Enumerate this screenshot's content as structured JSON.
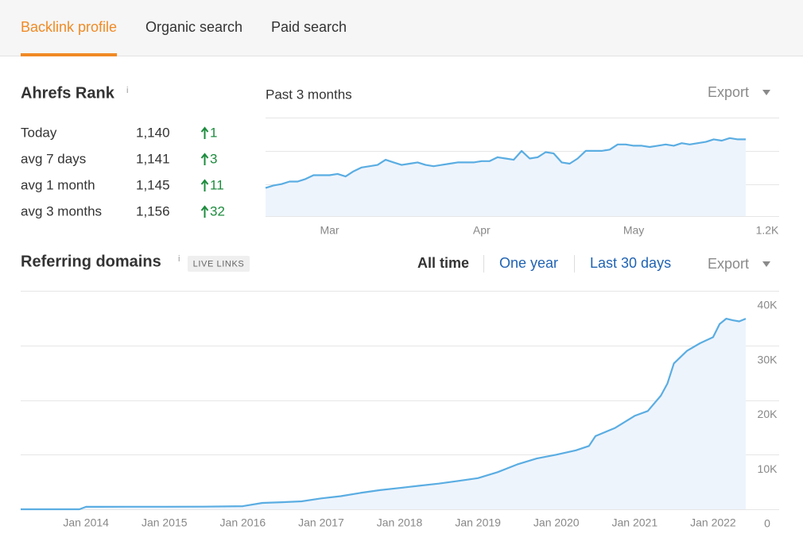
{
  "tabs": [
    {
      "label": "Backlink profile",
      "active": true
    },
    {
      "label": "Organic search",
      "active": false
    },
    {
      "label": "Paid search",
      "active": false
    }
  ],
  "ahrefs_rank": {
    "title": "Ahrefs Rank",
    "info": "i",
    "rows": [
      {
        "label": "Today",
        "value": "1,140",
        "change": 1
      },
      {
        "label": "avg 7 days",
        "value": "1,141",
        "change": 3
      },
      {
        "label": "avg 1 month",
        "value": "1,145",
        "change": 11
      },
      {
        "label": "avg 3 months",
        "value": "1,156",
        "change": 32
      }
    ]
  },
  "referring_domains": {
    "title": "Referring domains",
    "info": "i",
    "badge": "LIVE LINKS",
    "ranges": [
      {
        "label": "All time",
        "active": true
      },
      {
        "label": "One year",
        "active": false
      },
      {
        "label": "Last 30 days",
        "active": false
      }
    ],
    "export": "Export"
  },
  "chart_data": [
    {
      "type": "area",
      "subtitle": "Past 3 months",
      "export": "Export",
      "color": "#5aade2",
      "values": [
        1178,
        1176,
        1175,
        1173,
        1173,
        1171,
        1168,
        1168,
        1168,
        1167,
        1169,
        1165,
        1162,
        1161,
        1160,
        1156,
        1158,
        1160,
        1159,
        1158,
        1160,
        1161,
        1160,
        1159,
        1158,
        1158,
        1158,
        1157,
        1157,
        1154,
        1155,
        1156,
        1149,
        1155,
        1154,
        1150,
        1151,
        1158,
        1159,
        1155,
        1149,
        1149,
        1149,
        1148,
        1144,
        1144,
        1145,
        1145,
        1146,
        1145,
        1144,
        1145,
        1143,
        1144,
        1143,
        1142,
        1140,
        1141,
        1139,
        1140,
        1140
      ],
      "xlim": [
        0,
        60
      ],
      "xticks": [
        {
          "value": 8,
          "label": "Mar"
        },
        {
          "value": 27,
          "label": "Apr"
        },
        {
          "value": 46,
          "label": "May"
        }
      ],
      "ylim": [
        1200,
        1123
      ],
      "yticks": [
        {
          "value": 1200,
          "label": "1.2K"
        }
      ],
      "grid": true
    },
    {
      "type": "area",
      "color": "#5aade2",
      "x": [
        "2013-03",
        "2013-06",
        "2013-09",
        "2013-12",
        "2014-01",
        "2014-07",
        "2015-01",
        "2015-07",
        "2016-01",
        "2016-04",
        "2016-07",
        "2016-10",
        "2017-01",
        "2017-04",
        "2017-07",
        "2017-10",
        "2018-01",
        "2018-04",
        "2018-07",
        "2018-10",
        "2019-01",
        "2019-04",
        "2019-07",
        "2019-10",
        "2020-01",
        "2020-04",
        "2020-06",
        "2020-07",
        "2020-10",
        "2021-01",
        "2021-03",
        "2021-05",
        "2021-06",
        "2021-07",
        "2021-09",
        "2021-11",
        "2022-01",
        "2022-02",
        "2022-03",
        "2022-04",
        "2022-05",
        "2022-06"
      ],
      "values": [
        0,
        0,
        0,
        0,
        450,
        460,
        470,
        480,
        560,
        1160,
        1300,
        1450,
        2000,
        2400,
        3000,
        3500,
        3900,
        4300,
        4700,
        5200,
        5700,
        6800,
        8200,
        9300,
        10000,
        10800,
        11600,
        13400,
        14900,
        17100,
        18000,
        20800,
        23000,
        26700,
        29000,
        30400,
        31500,
        33900,
        34900,
        34600,
        34400,
        34900
      ],
      "xlim": [
        "2013-03",
        "2022-06"
      ],
      "xticks": [
        {
          "value": "2014-01",
          "label": "Jan 2014"
        },
        {
          "value": "2015-01",
          "label": "Jan 2015"
        },
        {
          "value": "2016-01",
          "label": "Jan 2016"
        },
        {
          "value": "2017-01",
          "label": "Jan 2017"
        },
        {
          "value": "2018-01",
          "label": "Jan 2018"
        },
        {
          "value": "2019-01",
          "label": "Jan 2019"
        },
        {
          "value": "2020-01",
          "label": "Jan 2020"
        },
        {
          "value": "2021-01",
          "label": "Jan 2021"
        },
        {
          "value": "2022-01",
          "label": "Jan 2022"
        }
      ],
      "ylim": [
        0,
        40000
      ],
      "yticks": [
        0,
        {
          "value": 10000,
          "label": "10K"
        },
        {
          "value": 20000,
          "label": "20K"
        },
        {
          "value": 30000,
          "label": "30K"
        },
        {
          "value": 40000,
          "label": "40K"
        }
      ],
      "grid": true
    }
  ]
}
